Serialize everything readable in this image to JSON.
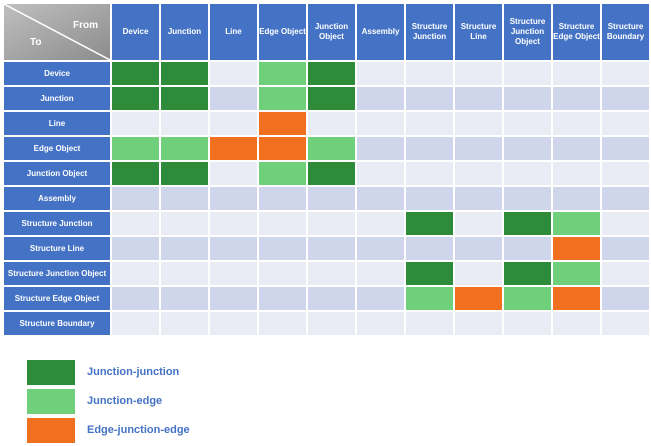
{
  "corner": {
    "from_label": "From",
    "to_label": "To"
  },
  "columns": [
    "Device",
    "Junction",
    "Line",
    "Edge Object",
    "Junction Object",
    "Assembly",
    "Structure Junction",
    "Structure Line",
    "Structure Junction Object",
    "Structure Edge Object",
    "Structure Boundary"
  ],
  "rows": [
    {
      "label": "Device",
      "cells": [
        "jj",
        "jj",
        "",
        "je",
        "jj",
        "",
        "",
        "",
        "",
        "",
        ""
      ]
    },
    {
      "label": "Junction",
      "cells": [
        "jj",
        "jj",
        "",
        "je",
        "jj",
        "",
        "",
        "",
        "",
        "",
        ""
      ]
    },
    {
      "label": "Line",
      "cells": [
        "",
        "",
        "",
        "eje",
        "",
        "",
        "",
        "",
        "",
        "",
        ""
      ]
    },
    {
      "label": "Edge Object",
      "cells": [
        "je",
        "je",
        "eje",
        "eje",
        "je",
        "",
        "",
        "",
        "",
        "",
        ""
      ]
    },
    {
      "label": "Junction Object",
      "cells": [
        "jj",
        "jj",
        "",
        "je",
        "jj",
        "",
        "",
        "",
        "",
        "",
        ""
      ]
    },
    {
      "label": "Assembly",
      "cells": [
        "",
        "",
        "",
        "",
        "",
        "",
        "",
        "",
        "",
        "",
        ""
      ]
    },
    {
      "label": "Structure Junction",
      "cells": [
        "",
        "",
        "",
        "",
        "",
        "",
        "jj",
        "",
        "jj",
        "je",
        ""
      ]
    },
    {
      "label": "Structure Line",
      "cells": [
        "",
        "",
        "",
        "",
        "",
        "",
        "",
        "",
        "",
        "eje",
        ""
      ]
    },
    {
      "label": "Structure Junction Object",
      "cells": [
        "",
        "",
        "",
        "",
        "",
        "",
        "jj",
        "",
        "jj",
        "je",
        ""
      ]
    },
    {
      "label": "Structure Edge Object",
      "cells": [
        "",
        "",
        "",
        "",
        "",
        "",
        "je",
        "eje",
        "je",
        "eje",
        ""
      ]
    },
    {
      "label": "Structure Boundary",
      "cells": [
        "",
        "",
        "",
        "",
        "",
        "",
        "",
        "",
        "",
        "",
        ""
      ]
    }
  ],
  "legend": [
    {
      "key": "jj",
      "label": "Junction-junction",
      "color": "#2e8b3a"
    },
    {
      "key": "je",
      "label": "Junction-edge",
      "color": "#6fcf7a"
    },
    {
      "key": "eje",
      "label": "Edge-junction-edge",
      "color": "#f07020"
    }
  ],
  "colors": {
    "header_bg": "#4472c4",
    "empty_even": "#e9ebf5",
    "empty_odd": "#cfd5ea"
  }
}
